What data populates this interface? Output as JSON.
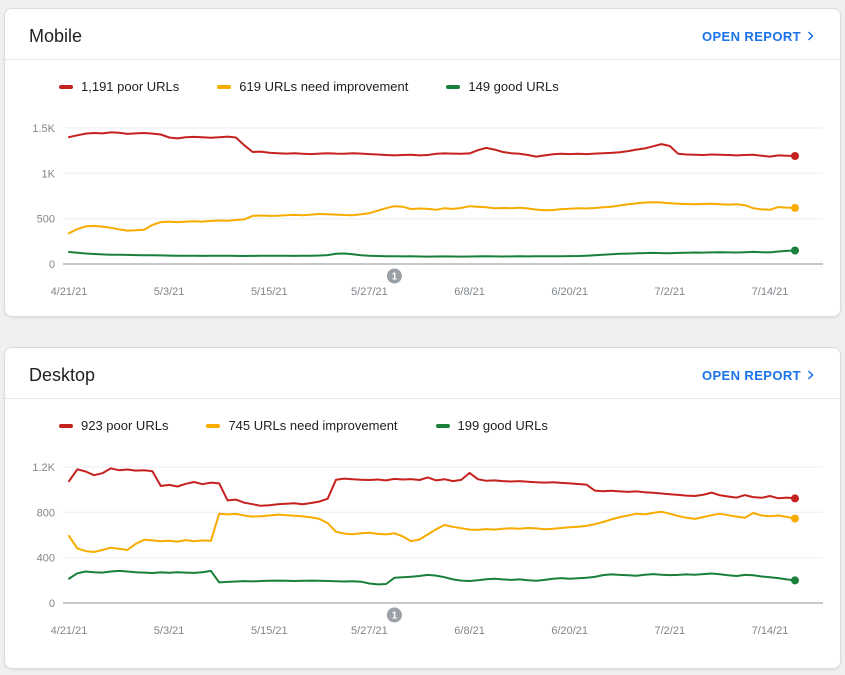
{
  "page": {
    "background": "#F0F0F1"
  },
  "colors": {
    "poor": "#C5221F",
    "needs_improvement": "#F9AB00",
    "good": "#188038",
    "link": "#1A73E8",
    "axis_label": "#80868B",
    "gridline": "#EBEDEF",
    "zero_line": "#8E9296",
    "marker": "#9AA0A6"
  },
  "cards": [
    {
      "title": "Mobile",
      "open_report_label": "OPEN REPORT"
    },
    {
      "title": "Desktop",
      "open_report_label": "OPEN REPORT"
    }
  ],
  "chart_data": [
    {
      "type": "line",
      "title": "Mobile",
      "x_tick_labels": [
        "4/21/21",
        "5/3/21",
        "5/15/21",
        "5/27/21",
        "6/8/21",
        "6/20/21",
        "7/2/21",
        "7/14/21"
      ],
      "x_tick_indices": [
        0,
        12,
        24,
        36,
        48,
        60,
        72,
        84
      ],
      "y_ticks": [
        0,
        500,
        1000,
        1500
      ],
      "y_tick_labels": [
        "0",
        "500",
        "1K",
        "1.5K"
      ],
      "ylim": [
        0,
        1500
      ],
      "grid": true,
      "legend_position": "top",
      "annotation": {
        "label": "1",
        "index": 39
      },
      "series": [
        {
          "name": "1,191 poor URLs",
          "color": "#C5221F",
          "current": 1191,
          "values": [
            1400,
            1420,
            1438,
            1445,
            1440,
            1452,
            1448,
            1435,
            1440,
            1445,
            1438,
            1428,
            1395,
            1385,
            1398,
            1402,
            1398,
            1392,
            1398,
            1405,
            1395,
            1310,
            1235,
            1240,
            1228,
            1222,
            1218,
            1222,
            1215,
            1212,
            1218,
            1222,
            1218,
            1215,
            1222,
            1218,
            1212,
            1208,
            1202,
            1198,
            1202,
            1205,
            1198,
            1202,
            1215,
            1220,
            1218,
            1215,
            1220,
            1255,
            1280,
            1262,
            1235,
            1222,
            1215,
            1202,
            1185,
            1198,
            1210,
            1215,
            1212,
            1215,
            1212,
            1218,
            1222,
            1225,
            1232,
            1245,
            1262,
            1275,
            1298,
            1322,
            1302,
            1215,
            1208,
            1205,
            1202,
            1208,
            1205,
            1202,
            1198,
            1202,
            1205,
            1195,
            1185,
            1198,
            1195,
            1191
          ]
        },
        {
          "name": "619 URLs need improvement",
          "color": "#F9AB00",
          "current": 619,
          "values": [
            340,
            385,
            415,
            420,
            412,
            400,
            382,
            368,
            372,
            378,
            430,
            462,
            468,
            462,
            468,
            472,
            468,
            475,
            480,
            478,
            485,
            492,
            530,
            535,
            530,
            533,
            538,
            542,
            538,
            545,
            552,
            548,
            545,
            540,
            538,
            548,
            560,
            588,
            615,
            638,
            632,
            605,
            612,
            608,
            598,
            615,
            608,
            618,
            638,
            632,
            625,
            615,
            618,
            615,
            620,
            612,
            600,
            592,
            596,
            605,
            610,
            615,
            612,
            618,
            625,
            632,
            645,
            658,
            668,
            678,
            682,
            678,
            670,
            665,
            662,
            658,
            662,
            665,
            660,
            655,
            658,
            648,
            615,
            602,
            598,
            628,
            622,
            619
          ]
        },
        {
          "name": "149 good URLs",
          "color": "#188038",
          "current": 149,
          "values": [
            132,
            125,
            116,
            110,
            106,
            103,
            101,
            100,
            98,
            97,
            96,
            95,
            93,
            92,
            91,
            90,
            89,
            90,
            91,
            90,
            89,
            88,
            89,
            90,
            90,
            91,
            90,
            89,
            90,
            92,
            94,
            98,
            112,
            116,
            108,
            96,
            90,
            88,
            86,
            85,
            84,
            85,
            83,
            82,
            83,
            84,
            83,
            82,
            83,
            84,
            85,
            84,
            83,
            84,
            85,
            84,
            85,
            86,
            85,
            86,
            87,
            88,
            92,
            96,
            102,
            108,
            112,
            115,
            118,
            120,
            122,
            120,
            118,
            122,
            125,
            127,
            126,
            128,
            130,
            128,
            127,
            130,
            133,
            130,
            128,
            138,
            145,
            149
          ]
        }
      ]
    },
    {
      "type": "line",
      "title": "Desktop",
      "x_tick_labels": [
        "4/21/21",
        "5/3/21",
        "5/15/21",
        "5/27/21",
        "6/8/21",
        "6/20/21",
        "7/2/21",
        "7/14/21"
      ],
      "x_tick_indices": [
        0,
        12,
        24,
        36,
        48,
        60,
        72,
        84
      ],
      "y_ticks": [
        0,
        400,
        800,
        1200
      ],
      "y_tick_labels": [
        "0",
        "400",
        "800",
        "1.2K"
      ],
      "ylim": [
        0,
        1200
      ],
      "grid": true,
      "legend_position": "top",
      "annotation": {
        "label": "1",
        "index": 39
      },
      "series": [
        {
          "name": "923 poor URLs",
          "color": "#C5221F",
          "current": 923,
          "values": [
            1075,
            1180,
            1160,
            1128,
            1145,
            1188,
            1172,
            1178,
            1168,
            1172,
            1162,
            1032,
            1042,
            1028,
            1052,
            1068,
            1048,
            1062,
            1055,
            905,
            912,
            885,
            872,
            858,
            862,
            872,
            876,
            880,
            872,
            882,
            895,
            920,
            1088,
            1098,
            1092,
            1088,
            1085,
            1090,
            1082,
            1095,
            1090,
            1093,
            1085,
            1108,
            1082,
            1092,
            1076,
            1086,
            1148,
            1092,
            1078,
            1082,
            1076,
            1072,
            1076,
            1070,
            1066,
            1062,
            1066,
            1060,
            1055,
            1050,
            1045,
            992,
            986,
            990,
            985,
            980,
            985,
            978,
            972,
            966,
            960,
            954,
            948,
            944,
            955,
            974,
            950,
            940,
            930,
            952,
            934,
            928,
            944,
            924,
            930,
            923
          ]
        },
        {
          "name": "745 URLs need improvement",
          "color": "#F9AB00",
          "current": 745,
          "values": [
            592,
            482,
            458,
            450,
            468,
            488,
            478,
            468,
            522,
            558,
            552,
            545,
            550,
            542,
            555,
            545,
            552,
            548,
            788,
            782,
            786,
            772,
            762,
            766,
            772,
            780,
            776,
            770,
            764,
            755,
            742,
            705,
            628,
            612,
            606,
            616,
            620,
            610,
            605,
            616,
            588,
            545,
            560,
            605,
            650,
            688,
            672,
            660,
            648,
            645,
            652,
            648,
            655,
            660,
            656,
            662,
            658,
            650,
            656,
            662,
            668,
            672,
            680,
            695,
            715,
            738,
            758,
            772,
            788,
            782,
            795,
            805,
            788,
            768,
            752,
            742,
            758,
            775,
            788,
            775,
            762,
            752,
            795,
            772,
            765,
            772,
            760,
            745
          ]
        },
        {
          "name": "199 good URLs",
          "color": "#188038",
          "current": 199,
          "values": [
            215,
            262,
            278,
            272,
            268,
            278,
            283,
            278,
            272,
            268,
            265,
            270,
            267,
            272,
            268,
            266,
            272,
            283,
            182,
            186,
            190,
            193,
            191,
            194,
            196,
            198,
            196,
            194,
            196,
            198,
            196,
            194,
            192,
            190,
            192,
            188,
            172,
            164,
            168,
            222,
            228,
            232,
            238,
            248,
            242,
            228,
            208,
            198,
            194,
            200,
            210,
            214,
            208,
            204,
            208,
            200,
            197,
            204,
            214,
            220,
            214,
            218,
            222,
            230,
            246,
            252,
            248,
            244,
            240,
            250,
            255,
            250,
            246,
            248,
            252,
            250,
            255,
            260,
            254,
            244,
            238,
            248,
            244,
            234,
            228,
            220,
            208,
            199
          ]
        }
      ]
    }
  ]
}
